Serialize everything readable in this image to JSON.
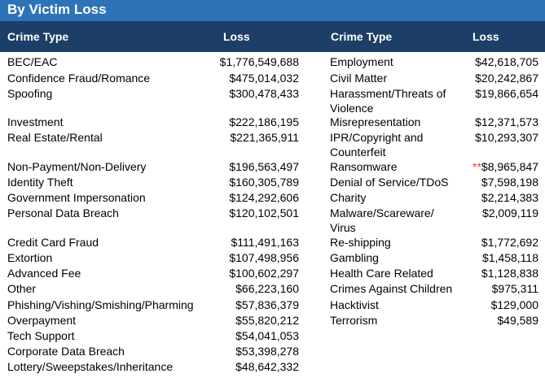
{
  "title": "By Victim Loss",
  "headers": {
    "left_crime": "Crime Type",
    "left_loss": "Loss",
    "right_crime": "Crime Type",
    "right_loss": "Loss"
  },
  "left_rows": [
    {
      "crime": "BEC/EAC",
      "loss": "$1,776,549,688"
    },
    {
      "crime": "Confidence Fraud/Romance",
      "loss": "$475,014,032"
    },
    {
      "crime": "Spoofing",
      "loss": "$300,478,433"
    },
    {
      "crime": "Investment",
      "loss": "$222,186,195"
    },
    {
      "crime": "Real Estate/Rental",
      "loss": "$221,365,911"
    },
    {
      "crime": "Non-Payment/Non-Delivery",
      "loss": "$196,563,497"
    },
    {
      "crime": "Identity Theft",
      "loss": "$160,305,789"
    },
    {
      "crime": "Government Impersonation",
      "loss": "$124,292,606"
    },
    {
      "crime": "Personal Data Breach",
      "loss": "$120,102,501"
    },
    {
      "crime": "Credit Card Fraud",
      "loss": "$111,491,163"
    },
    {
      "crime": "Extortion",
      "loss": "$107,498,956"
    },
    {
      "crime": "Advanced Fee",
      "loss": "$100,602,297"
    },
    {
      "crime": "Other",
      "loss": "$66,223,160"
    },
    {
      "crime": "Phishing/Vishing/Smishing/Pharming",
      "loss": "$57,836,379"
    },
    {
      "crime": "Overpayment",
      "loss": "$55,820,212"
    },
    {
      "crime": "Tech Support",
      "loss": "$54,041,053"
    },
    {
      "crime": "Corporate Data Breach",
      "loss": "$53,398,278"
    },
    {
      "crime": "Lottery/Sweepstakes/Inheritance",
      "loss": "$48,642,332"
    }
  ],
  "right_rows": [
    {
      "crime": "Employment",
      "loss": "$42,618,705"
    },
    {
      "crime": "Civil Matter",
      "loss": "$20,242,867"
    },
    {
      "crime": "Harassment/Threats of Violence",
      "loss": "$19,866,654"
    },
    {
      "crime": "Misrepresentation",
      "loss": "$12,371,573"
    },
    {
      "crime": "IPR/Copyright and Counterfeit",
      "loss": "$10,293,307"
    },
    {
      "crime": "Ransomware",
      "marker": "**",
      "loss": "$8,965,847"
    },
    {
      "crime": "Denial of Service/TDoS",
      "loss": "$7,598,198"
    },
    {
      "crime": "Charity",
      "loss": "$2,214,383"
    },
    {
      "crime": "Malware/Scareware/ Virus",
      "loss": "$2,009,119"
    },
    {
      "crime": "Re-shipping",
      "loss": "$1,772,692"
    },
    {
      "crime": "Gambling",
      "loss": "$1,458,118"
    },
    {
      "crime": "Health Care Related",
      "loss": "$1,128,838"
    },
    {
      "crime": "Crimes Against Children",
      "loss": "$975,311"
    },
    {
      "crime": "Hacktivist",
      "loss": "$129,000"
    },
    {
      "crime": "Terrorism",
      "loss": "$49,589"
    }
  ]
}
